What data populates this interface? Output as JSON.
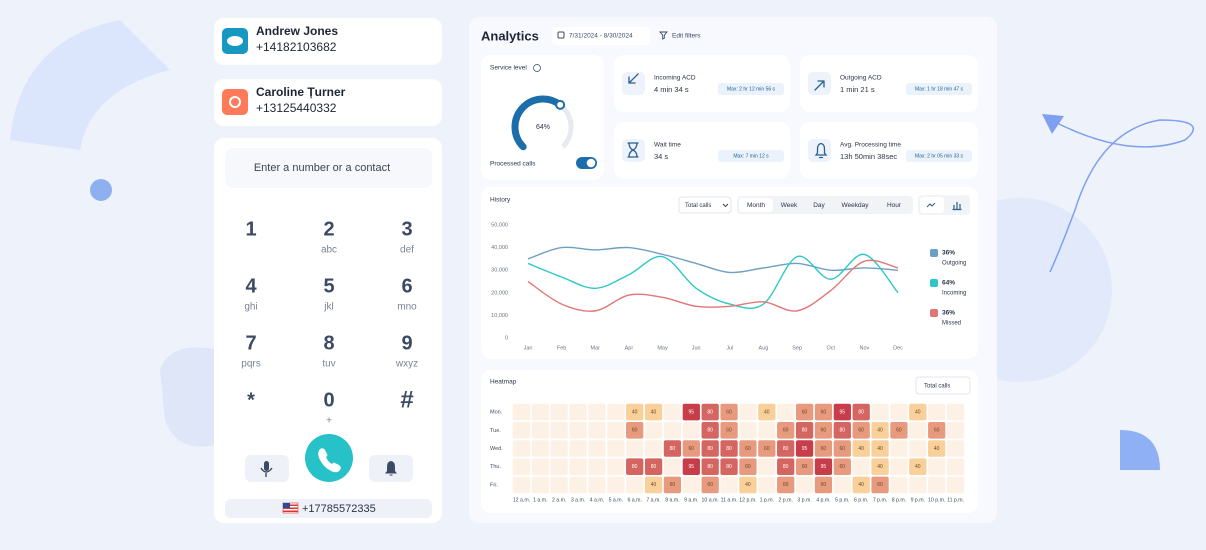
{
  "contacts": [
    {
      "name": "Andrew Jones",
      "phone": "+14182103682"
    },
    {
      "name": "Caroline Țurner",
      "phone": "+13125440332"
    }
  ],
  "dialer": {
    "placeholder": "Enter a number or a contact",
    "keys": [
      {
        "digit": "1",
        "letters": ""
      },
      {
        "digit": "2",
        "letters": "abc"
      },
      {
        "digit": "3",
        "letters": "def"
      },
      {
        "digit": "4",
        "letters": "ghi"
      },
      {
        "digit": "5",
        "letters": "jkl"
      },
      {
        "digit": "6",
        "letters": "mno"
      },
      {
        "digit": "7",
        "letters": "pqrs"
      },
      {
        "digit": "8",
        "letters": "tuv"
      },
      {
        "digit": "9",
        "letters": "wxyz"
      },
      {
        "digit": "*",
        "letters": ""
      },
      {
        "digit": "0",
        "letters": "+"
      },
      {
        "digit": "#",
        "letters": ""
      }
    ],
    "caller_id": "+17785572335"
  },
  "analytics": {
    "title": "Analytics",
    "date_range": "7/31/2024 - 8/30/2024",
    "edit_filters": "Edit filters",
    "service_level": {
      "label": "Service level",
      "value": 64,
      "value_label": "64%",
      "range": [
        0,
        100
      ],
      "processed_calls": "Processed calls"
    },
    "stats": [
      {
        "label": "Incoming ACD",
        "value": "4 min 34 s",
        "max": "Max: 2 hr 12 min 56 s"
      },
      {
        "label": "Outgoing ACD",
        "value": "1 min 21 s",
        "max": "Max: 1 hr 18 min 47 s"
      },
      {
        "label": "Wait time",
        "value": "34 s",
        "max": "Max: 7 min 12 s"
      },
      {
        "label": "Avg. Processing time",
        "value": "13h 50min 38sec",
        "max": "Max: 2 hr 05 min 33 s"
      }
    ],
    "history": {
      "title": "History",
      "dropdown": "Total calls",
      "tabs": [
        "Month",
        "Week",
        "Day",
        "Weekday",
        "Hour"
      ],
      "active_tab": 0
    },
    "heatmap": {
      "title": "Heatmap",
      "dropdown": "Total calls"
    }
  },
  "chart_data": [
    {
      "type": "line",
      "categories": [
        "Jan",
        "Feb",
        "Mar",
        "Apr",
        "May",
        "Jun",
        "Jul",
        "Aug",
        "Sep",
        "Oct",
        "Nov",
        "Dec"
      ],
      "ylim": [
        0,
        50000
      ],
      "yticks": [
        0,
        {
          "value": 10000,
          "label": "10,000"
        },
        {
          "value": 20000,
          "label": "20,000"
        },
        {
          "value": 30000,
          "label": "30,000"
        },
        {
          "value": 40000,
          "label": "40,000"
        },
        {
          "value": 50000,
          "label": "50,000"
        }
      ],
      "grid": false,
      "series": [
        {
          "name": "Outgoing",
          "share_label": "36%",
          "color": "#6f9ec4",
          "values": [
            35000,
            40000,
            39000,
            40000,
            37000,
            33000,
            29000,
            31000,
            33000,
            30000,
            31000,
            30000
          ]
        },
        {
          "name": "Incoming",
          "share_label": "64%",
          "color": "#2cc8c8",
          "values": [
            33000,
            27000,
            22000,
            28000,
            36000,
            22000,
            15000,
            15000,
            36000,
            26000,
            37000,
            20000
          ]
        },
        {
          "name": "Missed",
          "share_label": "36%",
          "color": "#e27676",
          "values": [
            25000,
            15000,
            12000,
            19000,
            18000,
            14000,
            14000,
            16000,
            12000,
            21000,
            34000,
            31000
          ]
        }
      ]
    },
    {
      "type": "heatmap",
      "rows": [
        "Mon.",
        "Tue.",
        "Wed.",
        "Thu.",
        "Fri."
      ],
      "columns": [
        "12 a.m.",
        "1 a.m.",
        "2 a.m.",
        "3 a.m.",
        "4 a.m.",
        "5 a.m.",
        "6 a.m.",
        "7 a.m.",
        "8 a.m.",
        "9 a.m.",
        "10 a.m.",
        "11 a.m.",
        "12 p.m.",
        "1 p.m.",
        "2 p.m.",
        "3 p.m.",
        "4 p.m.",
        "5 p.m.",
        "6 p.m.",
        "7 p.m.",
        "8 p.m.",
        "9 p.m.",
        "10 p.m.",
        "11 p.m."
      ],
      "color_empty": "#fdf1e6",
      "color_low": "#f9cf9a",
      "color_high": "#c73d4a",
      "vlim": [
        40,
        95
      ],
      "values": [
        [
          null,
          null,
          null,
          null,
          null,
          null,
          40,
          40,
          null,
          95,
          80,
          60,
          null,
          40,
          null,
          60,
          60,
          95,
          80,
          null,
          null,
          40,
          null,
          null
        ],
        [
          null,
          null,
          null,
          null,
          null,
          null,
          60,
          null,
          null,
          null,
          80,
          60,
          null,
          null,
          60,
          80,
          60,
          80,
          60,
          40,
          60,
          null,
          60,
          null
        ],
        [
          null,
          null,
          null,
          null,
          null,
          null,
          null,
          null,
          80,
          60,
          80,
          80,
          60,
          60,
          80,
          95,
          60,
          60,
          40,
          40,
          null,
          null,
          40,
          null
        ],
        [
          null,
          null,
          null,
          null,
          null,
          null,
          80,
          80,
          null,
          95,
          80,
          80,
          60,
          null,
          80,
          60,
          95,
          60,
          null,
          40,
          null,
          40,
          null,
          null
        ],
        [
          null,
          null,
          null,
          null,
          null,
          null,
          null,
          40,
          60,
          null,
          60,
          null,
          40,
          null,
          60,
          null,
          60,
          null,
          40,
          60,
          null,
          null,
          null,
          null
        ]
      ]
    }
  ]
}
